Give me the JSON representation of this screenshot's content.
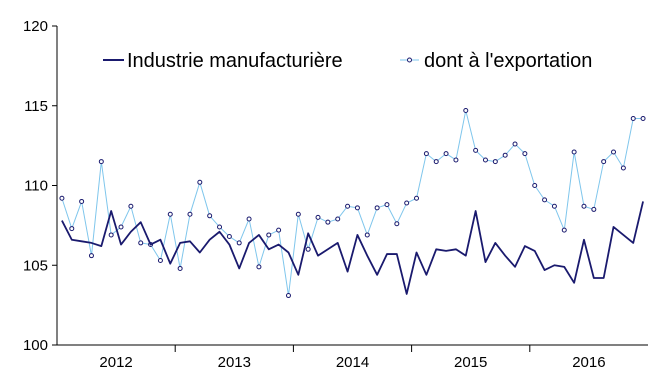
{
  "chart_data": {
    "type": "line",
    "ylim": [
      100,
      120
    ],
    "yticks": [
      100,
      105,
      110,
      115,
      120
    ],
    "x_period_labels": [
      "2012",
      "2013",
      "2014",
      "2015",
      "2016"
    ],
    "x_months_per_period": 12,
    "grid": false,
    "legend_position": "top",
    "series": [
      {
        "name": "Industrie manufacturière",
        "color": "#1a1a6e",
        "marker": "none",
        "values": [
          107.8,
          106.6,
          106.5,
          106.4,
          106.2,
          108.4,
          106.3,
          107.1,
          107.7,
          106.3,
          106.6,
          105.1,
          106.4,
          106.5,
          105.8,
          106.6,
          107.1,
          106.3,
          104.8,
          106.4,
          106.9,
          106.0,
          106.3,
          105.8,
          104.4,
          107.0,
          105.6,
          106.0,
          106.4,
          104.6,
          106.9,
          105.6,
          104.4,
          105.7,
          105.7,
          103.2,
          105.8,
          104.4,
          106.0,
          105.9,
          106.0,
          105.6,
          108.4,
          105.2,
          106.4,
          105.6,
          104.9,
          106.2,
          105.9,
          104.7,
          105.0,
          104.9,
          103.9,
          106.6,
          104.2,
          104.2,
          107.4,
          106.9,
          106.4,
          109.0
        ]
      },
      {
        "name": "dont à l'exportation",
        "color": "#7fc6ec",
        "marker": "circle",
        "marker_color": "#1a1a6e",
        "values": [
          109.2,
          107.3,
          109.0,
          105.6,
          111.5,
          106.9,
          107.4,
          108.7,
          106.4,
          106.3,
          105.3,
          108.2,
          104.8,
          108.2,
          110.2,
          108.1,
          107.4,
          106.8,
          106.4,
          107.9,
          104.9,
          106.9,
          107.2,
          103.1,
          108.2,
          106.0,
          108.0,
          107.7,
          107.9,
          108.7,
          108.6,
          106.9,
          108.6,
          108.8,
          107.6,
          108.9,
          109.2,
          112.0,
          111.5,
          112.0,
          111.6,
          114.7,
          112.2,
          111.6,
          111.5,
          111.9,
          112.6,
          112.0,
          110.0,
          109.1,
          108.7,
          107.2,
          112.1,
          108.7,
          108.5,
          111.5,
          112.1,
          111.1,
          114.2,
          114.2
        ]
      }
    ]
  }
}
